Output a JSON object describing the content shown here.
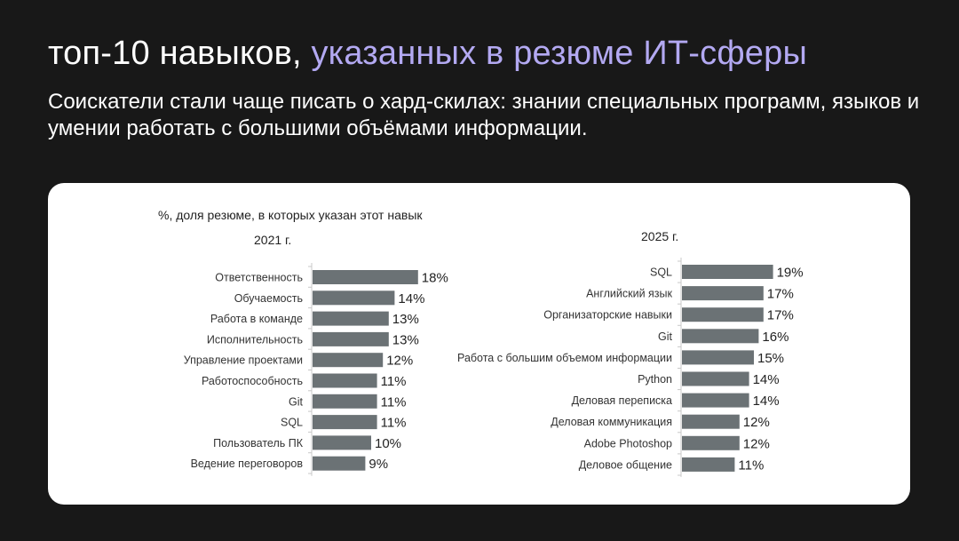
{
  "header": {
    "title_part1": "топ-10 навыков,",
    "title_part2": "указанных в резюме ИТ-сферы",
    "subtitle": "Соискатели стали чаще писать о хард-скилах: знании специальных программ, языков и умении работать с большими объёмами информации."
  },
  "colors": {
    "accent": "#b3a9f2",
    "bar": "#6b7275",
    "background": "#181818",
    "card": "#ffffff"
  },
  "chart_data": [
    {
      "type": "bar",
      "orientation": "horizontal",
      "caption": "%, доля резюме, в которых указан этот навык",
      "title": "2021 г.",
      "categories": [
        "Ответственность",
        "Обучаемость",
        "Работа в команде",
        "Исполнительность",
        "Управление проектами",
        "Работоспособность",
        "Git",
        "SQL",
        "Пользователь ПК",
        "Ведение переговоров"
      ],
      "values": [
        18,
        14,
        13,
        13,
        12,
        11,
        11,
        11,
        10,
        9
      ],
      "value_labels": [
        "18%",
        "14%",
        "13%",
        "13%",
        "12%",
        "11%",
        "11%",
        "11%",
        "10%",
        "9%"
      ],
      "xlim": [
        0,
        19
      ]
    },
    {
      "type": "bar",
      "orientation": "horizontal",
      "title": "2025 г.",
      "categories": [
        "SQL",
        "Английский язык",
        "Организаторские навыки",
        "Git",
        "Работа с большим объемом информации",
        "Python",
        "Деловая переписка",
        "Деловая коммуникация",
        "Adobe Photoshop",
        "Деловое общение"
      ],
      "values": [
        19,
        17,
        17,
        16,
        15,
        14,
        14,
        12,
        12,
        11
      ],
      "value_labels": [
        "19%",
        "17%",
        "17%",
        "16%",
        "15%",
        "14%",
        "14%",
        "12%",
        "12%",
        "11%"
      ],
      "xlim": [
        0,
        19
      ]
    }
  ]
}
